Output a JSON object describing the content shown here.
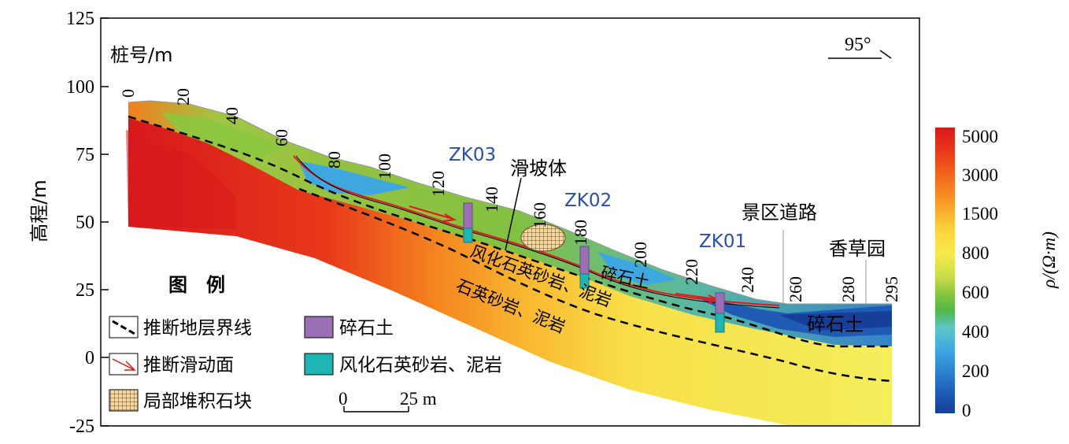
{
  "frame": {
    "y_ticks": [
      "125",
      "100",
      "75",
      "50",
      "25",
      "0",
      "-25"
    ],
    "y_label": "高程/m",
    "station_label": "桩号/m",
    "direction": "95°"
  },
  "stations": [
    "0",
    "20",
    "40",
    "60",
    "80",
    "100",
    "120",
    "140",
    "160",
    "180",
    "200",
    "220",
    "240",
    "260",
    "280",
    "295"
  ],
  "boreholes": [
    "ZK03",
    "ZK02",
    "ZK01"
  ],
  "labels": {
    "landslide": "滑坡体",
    "road": "景区道路",
    "herb_garden": "香草园",
    "weathered_upper": "风化石英砂岩、泥岩",
    "gravel_mid": "碎石土",
    "bedrock": "石英砂岩、泥岩",
    "gravel_right": "碎石土"
  },
  "legend": {
    "title": "图　例",
    "items": [
      {
        "label": "推断地层界线"
      },
      {
        "label": "推断滑动面"
      },
      {
        "label": "局部堆积石块"
      },
      {
        "label": "碎石土"
      },
      {
        "label": "风化石英砂岩、泥岩"
      }
    ],
    "scale": {
      "start": "0",
      "end": "25 m"
    }
  },
  "colorbar": {
    "ticks": [
      "5000",
      "3000",
      "1500",
      "800",
      "600",
      "400",
      "200",
      "0"
    ],
    "title": "ρ/(Ω·m)",
    "colors": [
      "#d7191c",
      "#e8381a",
      "#f46d1e",
      "#f9a52a",
      "#fcd43b",
      "#f7ea4c",
      "#c9de4a",
      "#8cc63f",
      "#50b848",
      "#5ec6c8",
      "#3fa7e0",
      "#2b7fcf",
      "#1f5bb4",
      "#173f9a"
    ]
  }
}
